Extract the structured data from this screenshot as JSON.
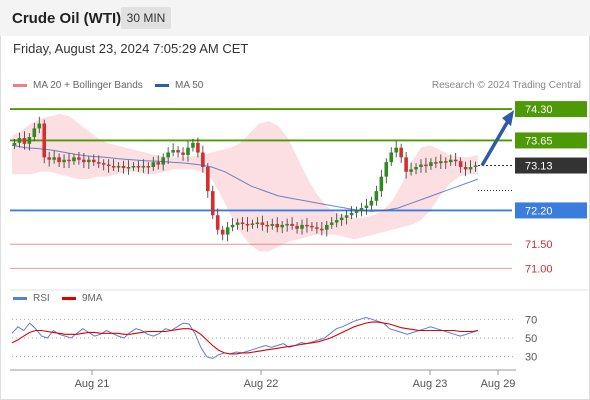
{
  "header": {
    "title": "Crude Oil (WTI)",
    "timeframe": "30 MIN"
  },
  "datetime": "Friday, August 23, 2024 7:05:29 AM CET",
  "legend": {
    "bb": {
      "label": "MA 20 + Bollinger Bands",
      "color": "#f08080"
    },
    "ma50": {
      "label": "MA 50",
      "color": "#2e5aa8"
    }
  },
  "credit": "Research © 2024 Trading Central",
  "rsi_legend": {
    "rsi": {
      "label": "RSI",
      "color": "#5b7fd6"
    },
    "ma9": {
      "label": "9MA",
      "color": "#e00000"
    }
  },
  "chart_data": [
    {
      "type": "candlestick",
      "title": "Crude Oil (WTI)",
      "timeframe": "30 MIN",
      "x_labels": [
        "Aug 21",
        "Aug 22",
        "Aug 23",
        "Aug 29"
      ],
      "ylim": [
        70.8,
        74.55
      ],
      "levels": [
        {
          "value": 74.3,
          "label": "74.30",
          "kind": "resistance",
          "color": "#4e9a06"
        },
        {
          "value": 73.65,
          "label": "73.65",
          "kind": "resistance",
          "color": "#4e9a06"
        },
        {
          "value": 73.13,
          "label": "73.13",
          "kind": "last",
          "color": "#333333"
        },
        {
          "value": 72.2,
          "label": "72.20",
          "kind": "pivot",
          "color": "#3b7ddd"
        },
        {
          "value": 71.5,
          "label": "71.50",
          "kind": "support",
          "color": "#e05050"
        },
        {
          "value": 71.0,
          "label": "71.00",
          "kind": "support",
          "color": "#e05050"
        }
      ],
      "close_series": [
        73.6,
        73.7,
        73.58,
        73.72,
        73.9,
        74.0,
        73.3,
        73.25,
        73.3,
        73.2,
        73.25,
        73.22,
        73.3,
        73.25,
        73.2,
        73.25,
        73.2,
        73.18,
        73.15,
        73.12,
        73.1,
        73.12,
        73.08,
        73.1,
        73.12,
        73.1,
        73.12,
        73.1,
        73.2,
        73.15,
        73.3,
        73.4,
        73.45,
        73.4,
        73.35,
        73.5,
        73.6,
        73.4,
        73.1,
        72.6,
        72.1,
        71.8,
        71.7,
        71.85,
        71.9,
        71.95,
        71.92,
        71.9,
        71.93,
        71.95,
        71.9,
        71.88,
        71.92,
        71.85,
        71.9,
        71.92,
        71.88,
        71.82,
        71.9,
        71.88,
        71.85,
        71.82,
        71.8,
        71.9,
        71.95,
        72.0,
        72.05,
        72.1,
        72.15,
        72.2,
        72.25,
        72.3,
        72.4,
        72.6,
        72.9,
        73.2,
        73.4,
        73.5,
        73.3,
        73.0,
        73.05,
        73.1,
        73.15,
        73.12,
        73.2,
        73.18,
        73.22,
        73.2,
        73.25,
        73.22,
        73.1,
        73.05,
        73.1,
        73.13
      ],
      "bollinger": {
        "upper": [
          73.75,
          73.85,
          74.0,
          74.1,
          74.15,
          74.2,
          74.15,
          74.0,
          73.85,
          73.7,
          73.6,
          73.55,
          73.5,
          73.45,
          73.4,
          73.35,
          73.32,
          73.3,
          73.3,
          73.32,
          73.35,
          73.4,
          73.45,
          73.5,
          73.6,
          73.8,
          74.0,
          74.05,
          73.95,
          73.7,
          73.3,
          72.9,
          72.55,
          72.3,
          72.15,
          72.1,
          72.05,
          72.05,
          72.1,
          72.2,
          72.4,
          72.75,
          73.2,
          73.5,
          73.55,
          73.45,
          73.35,
          73.3,
          73.3,
          73.35
        ],
        "lower": [
          72.95,
          72.95,
          72.95,
          73.0,
          73.0,
          72.95,
          72.9,
          72.85,
          72.85,
          72.9,
          72.9,
          72.95,
          73.0,
          73.0,
          72.95,
          72.95,
          73.0,
          73.05,
          73.05,
          73.05,
          73.0,
          72.85,
          72.5,
          72.1,
          71.75,
          71.5,
          71.35,
          71.35,
          71.45,
          71.55,
          71.6,
          71.65,
          71.7,
          71.7,
          71.7,
          71.65,
          71.6,
          71.65,
          71.7,
          71.75,
          71.8,
          71.85,
          71.9,
          72.0,
          72.2,
          72.5,
          72.75,
          72.9,
          72.95,
          72.95
        ]
      },
      "ma50": [
        73.55,
        73.5,
        73.48,
        73.45,
        73.4,
        73.35,
        73.32,
        73.3,
        73.27,
        73.25,
        73.23,
        73.22,
        73.2,
        73.18,
        73.15,
        73.1,
        73.0,
        72.85,
        72.7,
        72.6,
        72.5,
        72.45,
        72.4,
        72.35,
        72.3,
        72.25,
        72.2,
        72.18,
        72.2,
        72.25,
        72.35,
        72.45,
        72.55,
        72.65,
        72.75,
        72.85
      ],
      "forecast_arrow": {
        "from": 73.13,
        "to": 74.3,
        "color": "#2e5aa8"
      }
    },
    {
      "type": "line",
      "title": "RSI",
      "ylim": [
        20,
        80
      ],
      "yticks": [
        70,
        50,
        30
      ],
      "series": [
        {
          "name": "RSI",
          "color": "#5b7fd6",
          "values": [
            55,
            62,
            58,
            66,
            60,
            52,
            50,
            58,
            54,
            52,
            50,
            55,
            60,
            56,
            52,
            54,
            58,
            55,
            52,
            50,
            56,
            60,
            58,
            54,
            52,
            55,
            60,
            58,
            62,
            66,
            65,
            55,
            40,
            30,
            28,
            32,
            34,
            33,
            35,
            34,
            36,
            38,
            40,
            42,
            40,
            42,
            44,
            40,
            42,
            45,
            44,
            46,
            48,
            50,
            55,
            60,
            62,
            65,
            68,
            70,
            72,
            70,
            68,
            66,
            60,
            58,
            56,
            54,
            56,
            58,
            60,
            62,
            60,
            58,
            56,
            54,
            52,
            54,
            56,
            58
          ]
        },
        {
          "name": "9MA",
          "color": "#e00000",
          "values": [
            45,
            48,
            52,
            56,
            58,
            58,
            57,
            56,
            55,
            54,
            54,
            54,
            55,
            56,
            56,
            55,
            55,
            55,
            55,
            54,
            54,
            55,
            56,
            57,
            57,
            57,
            57,
            58,
            59,
            60,
            60,
            58,
            54,
            48,
            42,
            37,
            34,
            33,
            33,
            34,
            34,
            35,
            36,
            37,
            38,
            39,
            40,
            41,
            42,
            43,
            44,
            45,
            46,
            48,
            50,
            53,
            56,
            59,
            62,
            64,
            66,
            67,
            67,
            66,
            65,
            63,
            61,
            60,
            59,
            58,
            58,
            58,
            58,
            58,
            58,
            58,
            57,
            57,
            57,
            58
          ]
        }
      ]
    }
  ]
}
